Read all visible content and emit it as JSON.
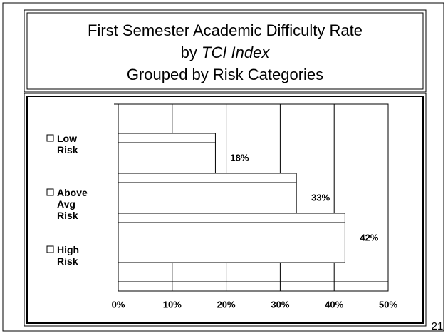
{
  "chart_data": {
    "type": "bar",
    "orientation": "horizontal",
    "title": "First Semester Academic Difficulty Rate",
    "title_by": "by",
    "title_index": "TCI Index",
    "subtitle": "Grouped by Risk Categories",
    "categories": [
      "Low Risk",
      "Above Avg Risk",
      "High Risk"
    ],
    "values": [
      18,
      33,
      42
    ],
    "value_labels": [
      "18%",
      "33%",
      "42%"
    ],
    "color": "#ffffff",
    "xlim": [
      0,
      50
    ],
    "xticks": [
      {
        "value": 0,
        "label": "0%"
      },
      {
        "value": 10,
        "label": "10%"
      },
      {
        "value": 20,
        "label": "20%"
      },
      {
        "value": 30,
        "label": "30%"
      },
      {
        "value": 40,
        "label": "40%"
      },
      {
        "value": 50,
        "label": "50%"
      }
    ],
    "grid": true,
    "page_number": "21"
  }
}
